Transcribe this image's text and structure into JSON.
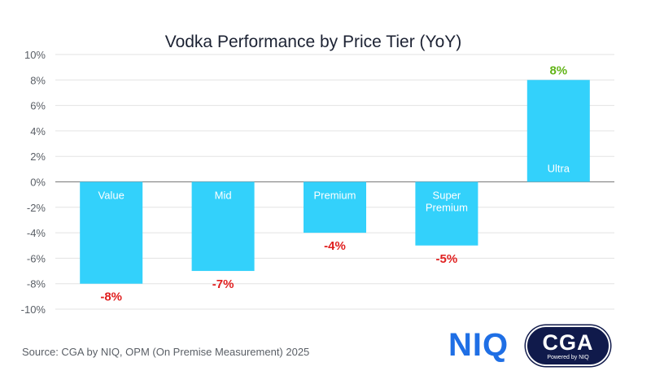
{
  "chart_data": {
    "type": "bar",
    "title": "Vodka Performance by Price Tier (YoY)",
    "categories": [
      "Value",
      "Mid",
      "Premium",
      "Super Premium",
      "Ultra"
    ],
    "category_lines": [
      [
        "Value"
      ],
      [
        "Mid"
      ],
      [
        "Premium"
      ],
      [
        "Super",
        "Premium"
      ],
      [
        "Ultra"
      ]
    ],
    "values": [
      -8,
      -7,
      -4,
      -5,
      8
    ],
    "value_labels": [
      "-8%",
      "-7%",
      "-4%",
      "-5%",
      "8%"
    ],
    "ylim": [
      -10,
      10
    ],
    "yticks": [
      "-10%",
      "-8%",
      "-6%",
      "-4%",
      "-2%",
      "0%",
      "2%",
      "4%",
      "6%",
      "8%",
      "10%"
    ],
    "ytick_values": [
      -10,
      -8,
      -6,
      -4,
      -2,
      0,
      2,
      4,
      6,
      8,
      10
    ],
    "grid": true,
    "xlabel": "",
    "ylabel": "",
    "bar_color": "#33d1fb",
    "negative_label_color": "#e02020",
    "positive_label_color": "#62b417"
  },
  "footer": {
    "source": "Source: CGA by NIQ, OPM (On Premise Measurement) 2025"
  },
  "logos": {
    "niq": "NIQ",
    "cga": "CGA",
    "cga_sub": "Powered by NIQ"
  }
}
